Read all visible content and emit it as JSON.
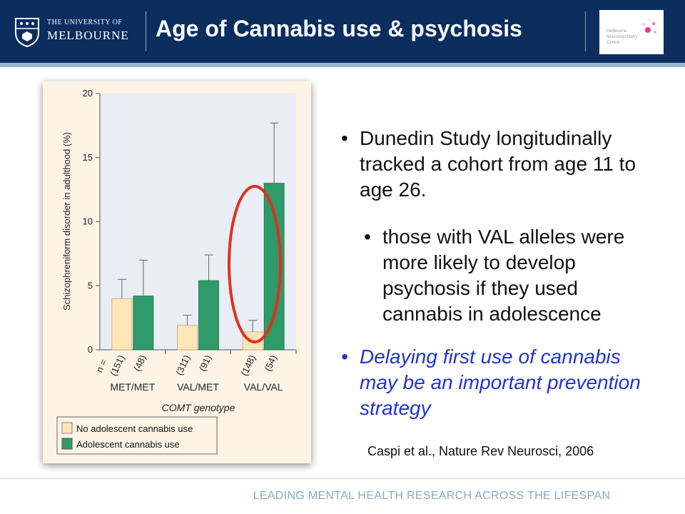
{
  "header": {
    "university_line1": "THE UNIVERSITY OF",
    "university_line2": "MELBOURNE",
    "title": "Age of Cannabis use & psychosis",
    "logo_text": "Melbourne\nNeuropsychiatry\nCentre"
  },
  "colors": {
    "header_bg": "#0b2e5e",
    "bar_no_use": "#fde5b8",
    "bar_use": "#2f9a6a",
    "highlight_ellipse": "#e0311f",
    "bullet_emphasis": "#2233cc"
  },
  "chart_data": {
    "type": "bar",
    "ylabel": "Schizophreniform disorder in adulthood (%)",
    "xlabel": "COMT genotype",
    "ylim": [
      0,
      20
    ],
    "yticks": [
      "0",
      "5",
      "10",
      "15",
      "20"
    ],
    "n_label": "n =",
    "categories": [
      "MET/MET",
      "VAL/MET",
      "VAL/VAL"
    ],
    "series": [
      {
        "name": "No adolescent cannabis use",
        "values": [
          4.0,
          1.9,
          1.4
        ],
        "error_upper": [
          5.5,
          2.7,
          2.3
        ],
        "n": [
          "(151)",
          "(311)",
          "(148)"
        ]
      },
      {
        "name": "Adolescent cannabis use",
        "values": [
          4.2,
          5.4,
          13.0
        ],
        "error_upper": [
          7.0,
          7.4,
          17.7
        ],
        "n": [
          "(48)",
          "(91)",
          "(54)"
        ]
      }
    ],
    "legend_position": "bottom-left",
    "annotation": "red ellipse highlighting VAL/VAL group"
  },
  "bullets": {
    "b1": "Dunedin Study longitudinally tracked a cohort from age 11 to age 26.",
    "b2": "those with VAL alleles were more likely to develop psychosis if they used cannabis in adolescence",
    "b3": "Delaying first use of cannabis may be an important prevention strategy",
    "bullet_char": "•"
  },
  "citation": "Caspi et al., Nature Rev Neurosci, 2006",
  "footer": "LEADING MENTAL HEALTH RESEARCH ACROSS THE LIFESPAN"
}
